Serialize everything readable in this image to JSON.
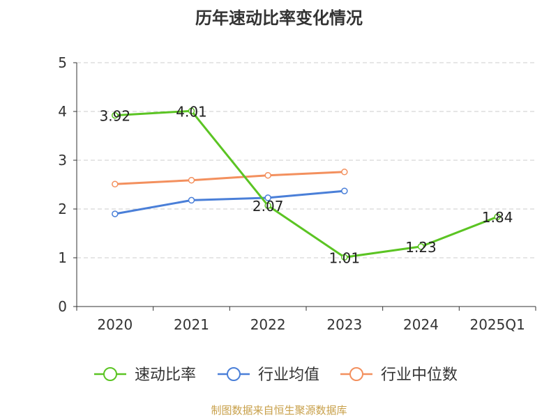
{
  "chart_data": {
    "type": "line",
    "title": "历年速动比率变化情况",
    "categories": [
      "2020",
      "2021",
      "2022",
      "2023",
      "2024",
      "2025Q1"
    ],
    "ylim": [
      0,
      5
    ],
    "yticks": [
      "0",
      "1",
      "2",
      "3",
      "4",
      "5"
    ],
    "grid": true,
    "legend_position": "bottom",
    "series": [
      {
        "name": "速动比率",
        "color": "#5bc423",
        "values": [
          3.92,
          4.01,
          2.07,
          1.01,
          1.23,
          1.84
        ],
        "labels": [
          "3.92",
          "4.01",
          "2.07",
          "1.01",
          "1.23",
          "1.84"
        ]
      },
      {
        "name": "行业均值",
        "color": "#4a7fd8",
        "values": [
          1.9,
          2.18,
          2.23,
          2.37,
          null,
          null
        ]
      },
      {
        "name": "行业中位数",
        "color": "#f3905e",
        "values": [
          2.51,
          2.59,
          2.69,
          2.76,
          null,
          null
        ]
      }
    ],
    "source": "制图数据来自恒生聚源数据库"
  }
}
